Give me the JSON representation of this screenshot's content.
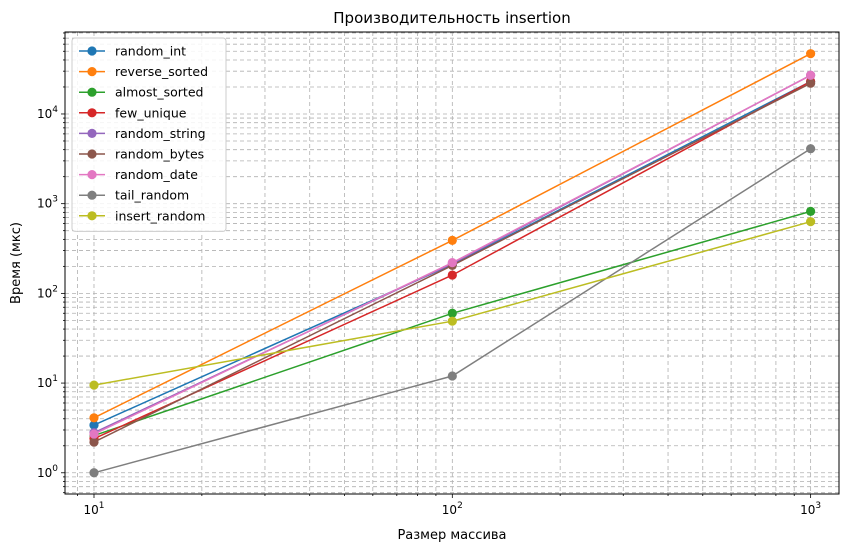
{
  "chart_data": {
    "type": "line",
    "title": "Производительность insertion",
    "xlabel": "Размер массива",
    "ylabel": "Время (мкс)",
    "xscale": "log",
    "yscale": "log",
    "xlim": [
      8.3,
      1200
    ],
    "ylim": [
      0.58,
      82000
    ],
    "grid": "both (major and minor), dashed",
    "legend_position": "top-left",
    "x": [
      10,
      100,
      1000
    ],
    "x_tick_labels": [
      {
        "base": "10",
        "exp": "1",
        "value": 10
      },
      {
        "base": "10",
        "exp": "2",
        "value": 100
      },
      {
        "base": "10",
        "exp": "3",
        "value": 1000
      }
    ],
    "y_tick_labels": [
      {
        "base": "10",
        "exp": "0",
        "value": 1
      },
      {
        "base": "10",
        "exp": "1",
        "value": 10
      },
      {
        "base": "10",
        "exp": "2",
        "value": 100
      },
      {
        "base": "10",
        "exp": "3",
        "value": 1000
      },
      {
        "base": "10",
        "exp": "4",
        "value": 10000
      }
    ],
    "series": [
      {
        "name": "random_int",
        "color": "#1f77b4",
        "values": [
          3.4,
          210,
          23000
        ]
      },
      {
        "name": "reverse_sorted",
        "color": "#ff7f0e",
        "values": [
          4.1,
          390,
          47000
        ]
      },
      {
        "name": "almost_sorted",
        "color": "#2ca02c",
        "values": [
          2.6,
          60,
          820
        ]
      },
      {
        "name": "few_unique",
        "color": "#d62728",
        "values": [
          2.4,
          160,
          23000
        ]
      },
      {
        "name": "random_string",
        "color": "#9467bd",
        "values": [
          2.8,
          215,
          27000
        ]
      },
      {
        "name": "random_bytes",
        "color": "#8c564b",
        "values": [
          2.2,
          205,
          22000
        ]
      },
      {
        "name": "random_date",
        "color": "#e377c2",
        "values": [
          2.7,
          220,
          27000
        ]
      },
      {
        "name": "tail_random",
        "color": "#7f7f7f",
        "values": [
          1.0,
          12,
          4100
        ]
      },
      {
        "name": "insert_random",
        "color": "#bcbd22",
        "values": [
          9.5,
          49,
          630
        ]
      }
    ]
  }
}
